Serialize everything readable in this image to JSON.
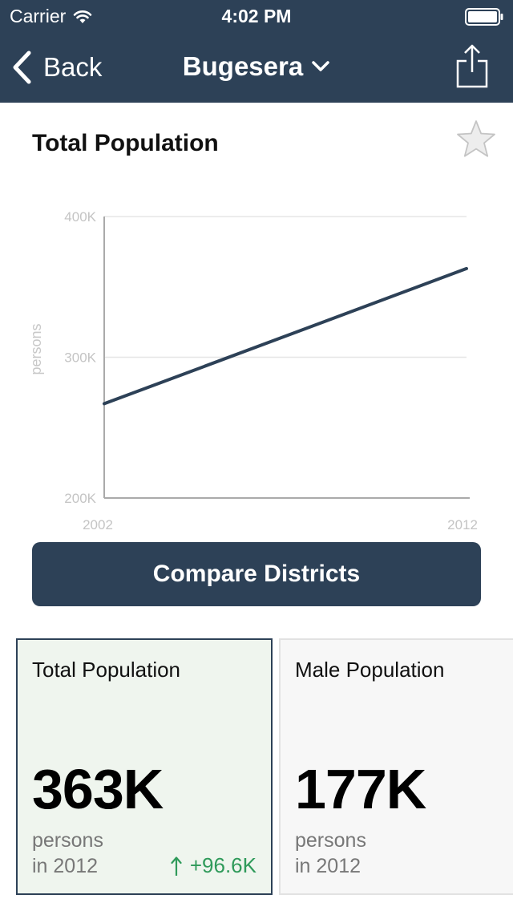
{
  "status_bar": {
    "carrier": "Carrier",
    "time": "4:02 PM"
  },
  "nav": {
    "back_label": "Back",
    "title": "Bugesera",
    "icons": [
      "back-chevron-icon",
      "chevron-down-icon",
      "share-icon"
    ]
  },
  "card": {
    "title": "Total Population",
    "favorite_icon": "star-icon",
    "favorited": false
  },
  "chart_data": {
    "type": "line",
    "title": "Total Population",
    "ylabel": "persons",
    "xlabel": "",
    "x": [
      2002,
      2012
    ],
    "series": [
      {
        "values": [
          267000,
          363000
        ],
        "color": "#2d4157"
      }
    ],
    "x_tick_labels": [
      "2002",
      "2012"
    ],
    "y_ticks": [
      200000,
      300000,
      400000
    ],
    "y_tick_labels": [
      "200K",
      "300K",
      "400K"
    ],
    "xlim": [
      2002,
      2012
    ],
    "ylim": [
      200000,
      400000
    ],
    "grid": true
  },
  "compare_button": {
    "label": "Compare Districts"
  },
  "stats": [
    {
      "label": "Total Population",
      "value": "363K",
      "unit": "persons",
      "year": "in 2012",
      "change": "+96.6K",
      "change_icon": "arrow-up-icon",
      "selected": true,
      "change_color": "#2f9a5a"
    },
    {
      "label": "Male Population",
      "value": "177K",
      "unit": "persons",
      "year": "in 2012",
      "selected": false
    }
  ],
  "colors": {
    "primary": "#2d4157",
    "selected_card_bg": "#eff5ee",
    "positive": "#2f9a5a"
  }
}
